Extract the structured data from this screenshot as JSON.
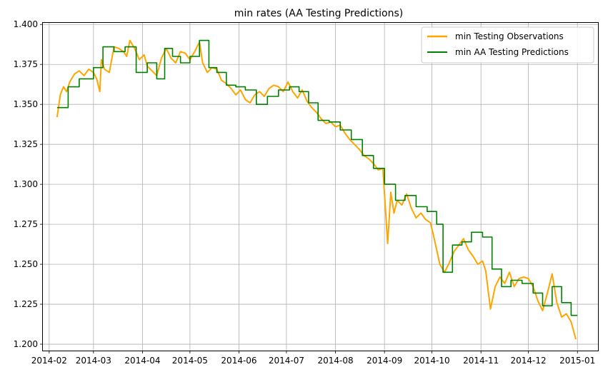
{
  "chart_data": {
    "type": "line",
    "title": "min rates (AA Testing Predictions)",
    "xlabel": "",
    "ylabel": "",
    "xlim": [
      "2014-01-28",
      "2015-01-14"
    ],
    "ylim": [
      1.196,
      1.401
    ],
    "grid": true,
    "legend_position": "top-right",
    "x_ticks": [
      "2014-02",
      "2014-03",
      "2014-04",
      "2014-05",
      "2014-06",
      "2014-07",
      "2014-08",
      "2014-09",
      "2014-10",
      "2014-11",
      "2014-12",
      "2015-01"
    ],
    "y_ticks": [
      "1.200",
      "1.225",
      "1.250",
      "1.275",
      "1.300",
      "1.325",
      "1.350",
      "1.375",
      "1.400"
    ],
    "series": [
      {
        "name": "min Testing Observations",
        "color": "#ffa500",
        "style": "solid",
        "x": [
          "2014-02-06",
          "2014-02-08",
          "2014-02-10",
          "2014-02-12",
          "2014-02-14",
          "2014-02-17",
          "2014-02-20",
          "2014-02-23",
          "2014-02-26",
          "2014-03-01",
          "2014-03-03",
          "2014-03-05",
          "2014-03-06",
          "2014-03-08",
          "2014-03-11",
          "2014-03-14",
          "2014-03-17",
          "2014-03-20",
          "2014-03-22",
          "2014-03-24",
          "2014-03-27",
          "2014-03-30",
          "2014-04-02",
          "2014-04-04",
          "2014-04-07",
          "2014-04-10",
          "2014-04-13",
          "2014-04-16",
          "2014-04-19",
          "2014-04-22",
          "2014-04-25",
          "2014-04-28",
          "2014-05-01",
          "2014-05-04",
          "2014-05-07",
          "2014-05-09",
          "2014-05-12",
          "2014-05-15",
          "2014-05-18",
          "2014-05-21",
          "2014-05-24",
          "2014-05-27",
          "2014-05-30",
          "2014-06-02",
          "2014-06-05",
          "2014-06-08",
          "2014-06-11",
          "2014-06-14",
          "2014-06-17",
          "2014-06-20",
          "2014-06-23",
          "2014-06-26",
          "2014-06-29",
          "2014-07-02",
          "2014-07-05",
          "2014-07-08",
          "2014-07-11",
          "2014-07-14",
          "2014-07-17",
          "2014-07-20",
          "2014-07-23",
          "2014-07-26",
          "2014-07-29",
          "2014-08-01",
          "2014-08-04",
          "2014-08-07",
          "2014-08-10",
          "2014-08-13",
          "2014-08-16",
          "2014-08-19",
          "2014-08-22",
          "2014-08-25",
          "2014-08-28",
          "2014-08-31",
          "2014-09-03",
          "2014-09-05",
          "2014-09-07",
          "2014-09-09",
          "2014-09-12",
          "2014-09-15",
          "2014-09-18",
          "2014-09-21",
          "2014-09-24",
          "2014-09-27",
          "2014-09-30",
          "2014-10-02",
          "2014-10-04",
          "2014-10-06",
          "2014-10-09",
          "2014-10-12",
          "2014-10-15",
          "2014-10-18",
          "2014-10-21",
          "2014-10-24",
          "2014-10-27",
          "2014-10-30",
          "2014-11-02",
          "2014-11-04",
          "2014-11-07",
          "2014-11-10",
          "2014-11-13",
          "2014-11-16",
          "2014-11-19",
          "2014-11-22",
          "2014-11-25",
          "2014-11-28",
          "2014-12-01",
          "2014-12-04",
          "2014-12-07",
          "2014-12-10",
          "2014-12-13",
          "2014-12-16",
          "2014-12-19",
          "2014-12-22",
          "2014-12-25",
          "2014-12-28",
          "2014-12-31"
        ],
        "y": [
          1.342,
          1.356,
          1.361,
          1.358,
          1.364,
          1.369,
          1.371,
          1.368,
          1.372,
          1.37,
          1.366,
          1.358,
          1.378,
          1.372,
          1.37,
          1.386,
          1.385,
          1.383,
          1.38,
          1.39,
          1.385,
          1.378,
          1.381,
          1.374,
          1.371,
          1.368,
          1.379,
          1.385,
          1.379,
          1.376,
          1.383,
          1.382,
          1.378,
          1.383,
          1.389,
          1.376,
          1.37,
          1.373,
          1.372,
          1.365,
          1.363,
          1.36,
          1.356,
          1.359,
          1.353,
          1.351,
          1.356,
          1.358,
          1.355,
          1.36,
          1.362,
          1.361,
          1.358,
          1.364,
          1.358,
          1.354,
          1.359,
          1.352,
          1.348,
          1.345,
          1.341,
          1.338,
          1.339,
          1.336,
          1.337,
          1.332,
          1.328,
          1.325,
          1.322,
          1.318,
          1.316,
          1.313,
          1.309,
          1.31,
          1.263,
          1.295,
          1.282,
          1.29,
          1.287,
          1.294,
          1.285,
          1.279,
          1.282,
          1.278,
          1.276,
          1.268,
          1.259,
          1.25,
          1.245,
          1.251,
          1.258,
          1.262,
          1.266,
          1.259,
          1.255,
          1.25,
          1.252,
          1.246,
          1.222,
          1.236,
          1.242,
          1.238,
          1.245,
          1.236,
          1.241,
          1.242,
          1.241,
          1.236,
          1.227,
          1.221,
          1.232,
          1.244,
          1.226,
          1.217,
          1.219,
          1.214,
          1.203
        ]
      },
      {
        "name": "min AA Testing Predictions",
        "color": "#008000",
        "style": "step",
        "x": [
          "2014-02-06",
          "2014-02-13",
          "2014-02-20",
          "2014-03-01",
          "2014-03-07",
          "2014-03-14",
          "2014-03-21",
          "2014-03-28",
          "2014-04-04",
          "2014-04-10",
          "2014-04-15",
          "2014-04-20",
          "2014-04-25",
          "2014-05-01",
          "2014-05-07",
          "2014-05-13",
          "2014-05-18",
          "2014-05-24",
          "2014-05-30",
          "2014-06-05",
          "2014-06-12",
          "2014-06-19",
          "2014-06-26",
          "2014-07-03",
          "2014-07-09",
          "2014-07-15",
          "2014-07-21",
          "2014-07-28",
          "2014-08-04",
          "2014-08-11",
          "2014-08-18",
          "2014-08-25",
          "2014-09-01",
          "2014-09-08",
          "2014-09-14",
          "2014-09-21",
          "2014-09-28",
          "2014-10-04",
          "2014-10-08",
          "2014-10-14",
          "2014-10-20",
          "2014-10-26",
          "2014-11-02",
          "2014-11-08",
          "2014-11-14",
          "2014-11-20",
          "2014-11-27",
          "2014-12-04",
          "2014-12-10",
          "2014-12-16",
          "2014-12-22",
          "2014-12-28"
        ],
        "y": [
          1.348,
          1.361,
          1.366,
          1.373,
          1.386,
          1.383,
          1.386,
          1.37,
          1.376,
          1.366,
          1.385,
          1.38,
          1.376,
          1.38,
          1.39,
          1.373,
          1.37,
          1.362,
          1.361,
          1.359,
          1.35,
          1.355,
          1.359,
          1.361,
          1.358,
          1.351,
          1.34,
          1.339,
          1.334,
          1.328,
          1.318,
          1.31,
          1.3,
          1.29,
          1.293,
          1.286,
          1.283,
          1.275,
          1.245,
          1.262,
          1.264,
          1.27,
          1.267,
          1.247,
          1.236,
          1.24,
          1.238,
          1.232,
          1.224,
          1.236,
          1.226,
          1.218
        ]
      }
    ]
  }
}
